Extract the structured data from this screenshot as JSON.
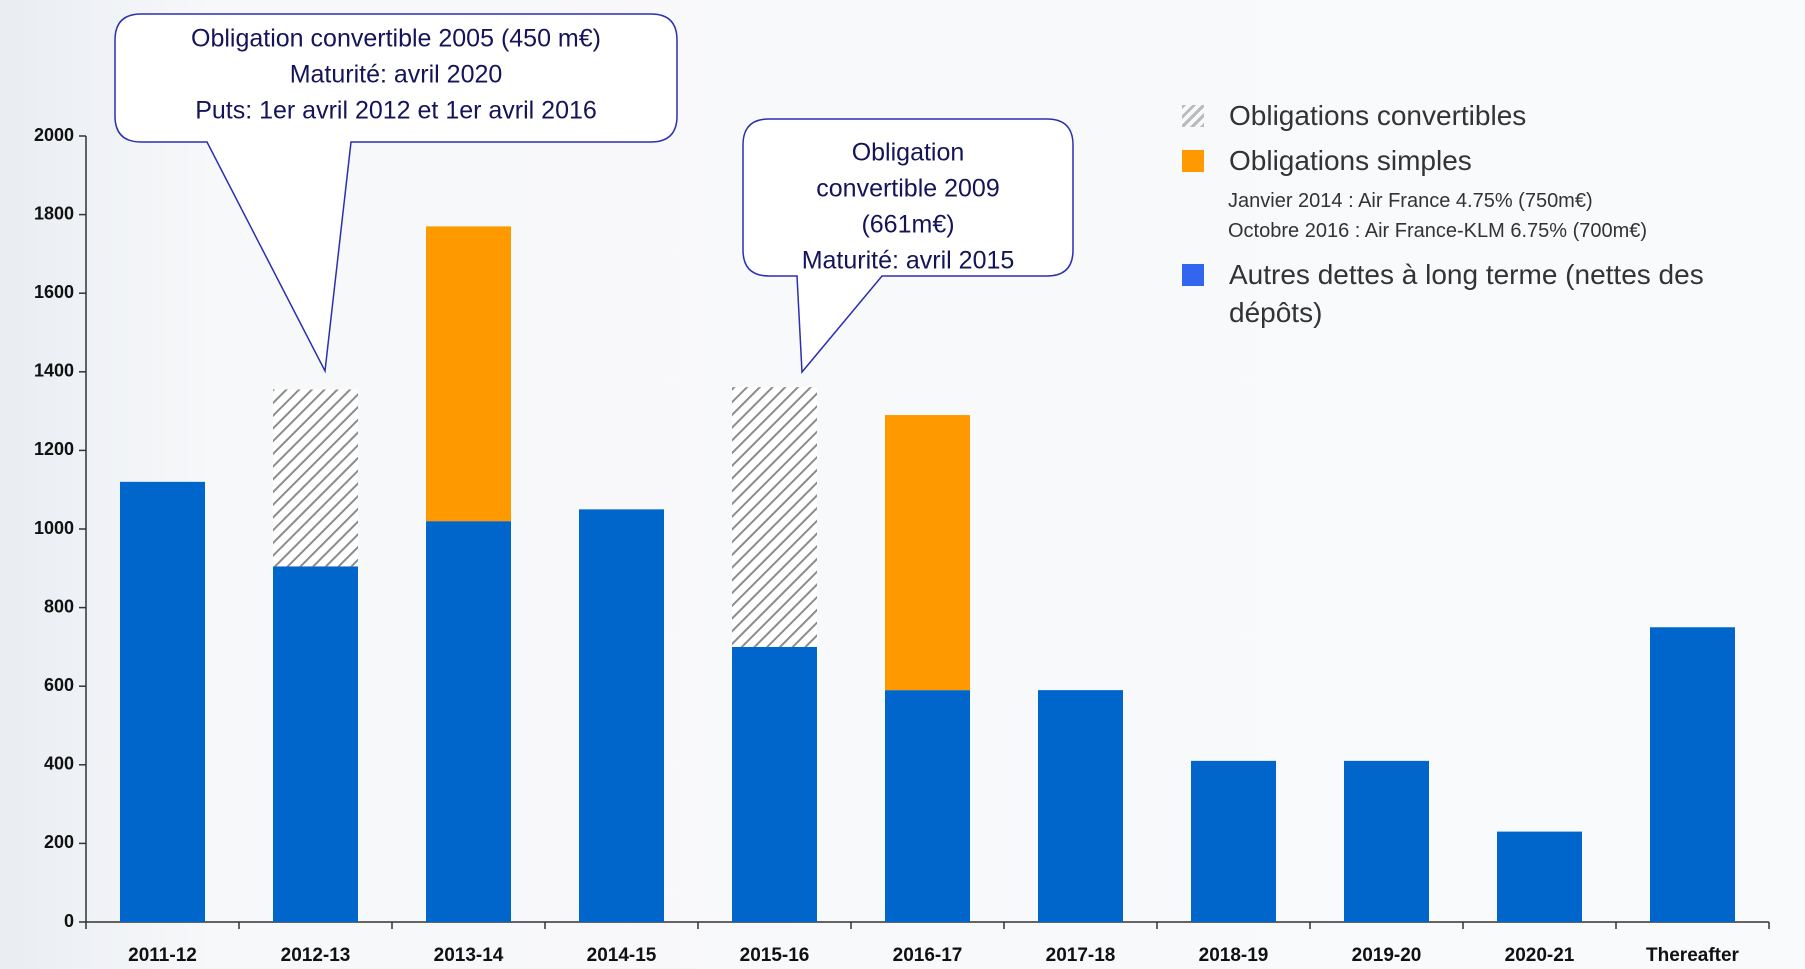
{
  "chart_data": {
    "type": "stacked_bar",
    "categories": [
      "2011-12",
      "2012-13",
      "2013-14",
      "2014-15",
      "2015-16",
      "2016-17",
      "2017-18",
      "2018-19",
      "2019-20",
      "2020-21",
      "Thereafter"
    ],
    "series": [
      {
        "name": "Autres dettes à long terme (nettes des dépôts)",
        "color": "#0066cc",
        "values": [
          1120,
          905,
          1020,
          1050,
          700,
          590,
          590,
          410,
          410,
          230,
          750
        ]
      },
      {
        "name": "Obligations simples",
        "color": "#ff9900",
        "values": [
          null,
          null,
          750,
          null,
          null,
          700,
          null,
          null,
          null,
          null,
          null
        ],
        "details": [
          "Janvier 2014 : Air France 4.75% (750m€)",
          "Octobre 2016 : Air France-KLM 6.75% (700m€)"
        ]
      },
      {
        "name": "Obligations convertibles",
        "color": "hatched",
        "values": [
          null,
          450,
          null,
          null,
          661,
          null,
          null,
          null,
          null,
          null,
          null
        ]
      }
    ],
    "ylim": [
      0,
      2000
    ],
    "yticks": [
      0,
      200,
      400,
      600,
      800,
      1000,
      1200,
      1400,
      1600,
      1800,
      2000
    ],
    "annotations": [
      {
        "lines": [
          "Obligation convertible 2005 (450 m€)",
          "Maturité: avril 2020",
          "Puts: 1er avril 2012 et 1er avril 2016"
        ]
      },
      {
        "lines": [
          "Obligation",
          "convertible 2009",
          "(661m€)",
          "Maturité: avril 2015"
        ]
      }
    ]
  }
}
